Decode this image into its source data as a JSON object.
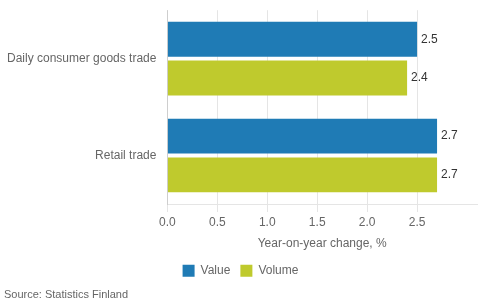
{
  "chart_data": {
    "type": "bar",
    "orientation": "horizontal",
    "categories": [
      "Daily consumer goods trade",
      "Retail trade"
    ],
    "series": [
      {
        "name": "Value",
        "color": "#1F7BB5",
        "values": [
          2.5,
          2.7
        ]
      },
      {
        "name": "Volume",
        "color": "#BFCA2D",
        "values": [
          2.4,
          2.7
        ]
      }
    ],
    "xlabel": "Year-on-year change, %",
    "xlim": [
      0,
      3.1
    ],
    "xticks": [
      {
        "value": 0,
        "label": "0.0"
      },
      0.5,
      {
        "value": 1,
        "label": "1.0"
      },
      1.5,
      {
        "value": 2,
        "label": "2.0"
      },
      2.5
    ],
    "grid": true,
    "legend": "bottom",
    "data_labels": true,
    "annotations": [
      "Source: Statistics Finland"
    ]
  }
}
